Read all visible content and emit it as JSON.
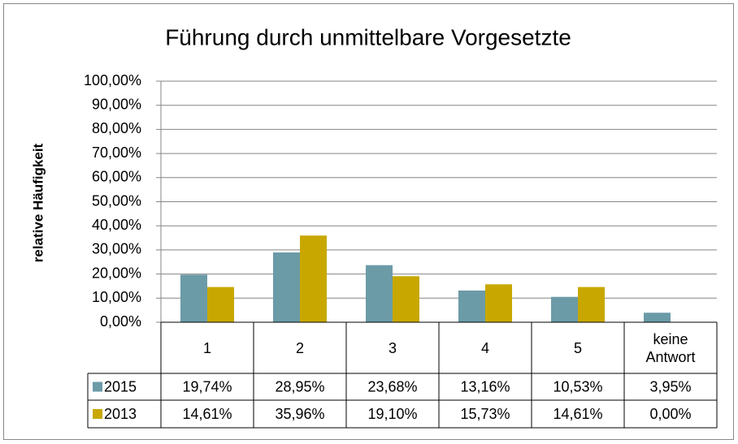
{
  "chart_data": {
    "type": "bar",
    "title": "Führung durch unmittelbare Vorgesetzte",
    "y_label": "relative Häufigkeit",
    "categories": [
      "1",
      "2",
      "3",
      "4",
      "5",
      "keine Antwort"
    ],
    "series": [
      {
        "name": "2015",
        "color": "#6b9ba7",
        "values": [
          19.74,
          28.95,
          23.68,
          13.16,
          10.53,
          3.95
        ],
        "value_labels": [
          "19,74%",
          "28,95%",
          "23,68%",
          "13,16%",
          "10,53%",
          "3,95%"
        ]
      },
      {
        "name": "2013",
        "color": "#c8a800",
        "values": [
          14.61,
          35.96,
          19.1,
          15.73,
          14.61,
          0.0
        ],
        "value_labels": [
          "14,61%",
          "35,96%",
          "19,10%",
          "15,73%",
          "14,61%",
          "0,00%"
        ]
      }
    ],
    "ylim": [
      0,
      100
    ],
    "yticks": [
      {
        "value": 0,
        "label": "0,00%"
      },
      {
        "value": 10,
        "label": "10,00%"
      },
      {
        "value": 20,
        "label": "20,00%"
      },
      {
        "value": 30,
        "label": "30,00%"
      },
      {
        "value": 40,
        "label": "40,00%"
      },
      {
        "value": 50,
        "label": "50,00%"
      },
      {
        "value": 60,
        "label": "60,00%"
      },
      {
        "value": 70,
        "label": "70,00%"
      },
      {
        "value": 80,
        "label": "80,00%"
      },
      {
        "value": 90,
        "label": "90,00%"
      },
      {
        "value": 100,
        "label": "100,00%"
      }
    ],
    "grid": true
  }
}
